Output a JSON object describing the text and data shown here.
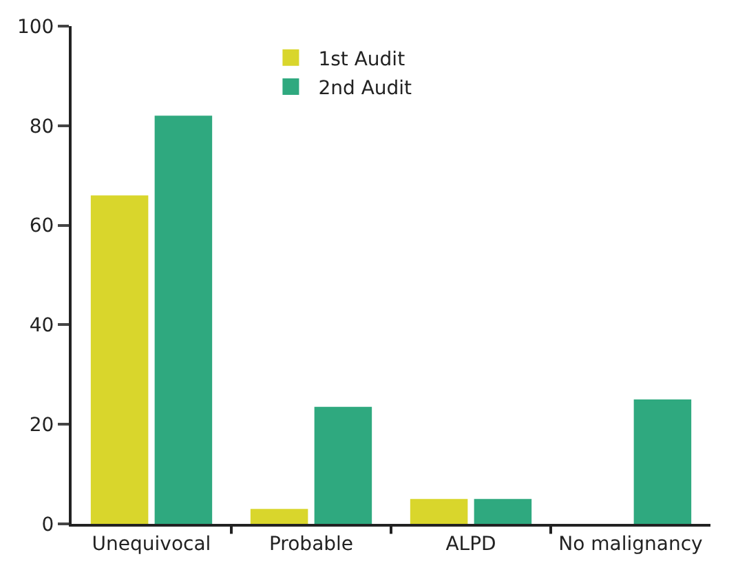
{
  "chart_data": {
    "type": "bar",
    "categories": [
      "Unequivocal",
      "Probable",
      "ALPD",
      "No malignancy"
    ],
    "series": [
      {
        "name": "1st Audit",
        "color": "#d9d62c",
        "values": [
          66,
          3,
          5,
          0
        ]
      },
      {
        "name": "2nd Audit",
        "color": "#2fa97f",
        "values": [
          82,
          23.5,
          5,
          25
        ]
      }
    ],
    "ylim": [
      0,
      100
    ],
    "yticks": [
      0,
      20,
      40,
      60,
      80,
      100
    ],
    "legend": "top"
  }
}
